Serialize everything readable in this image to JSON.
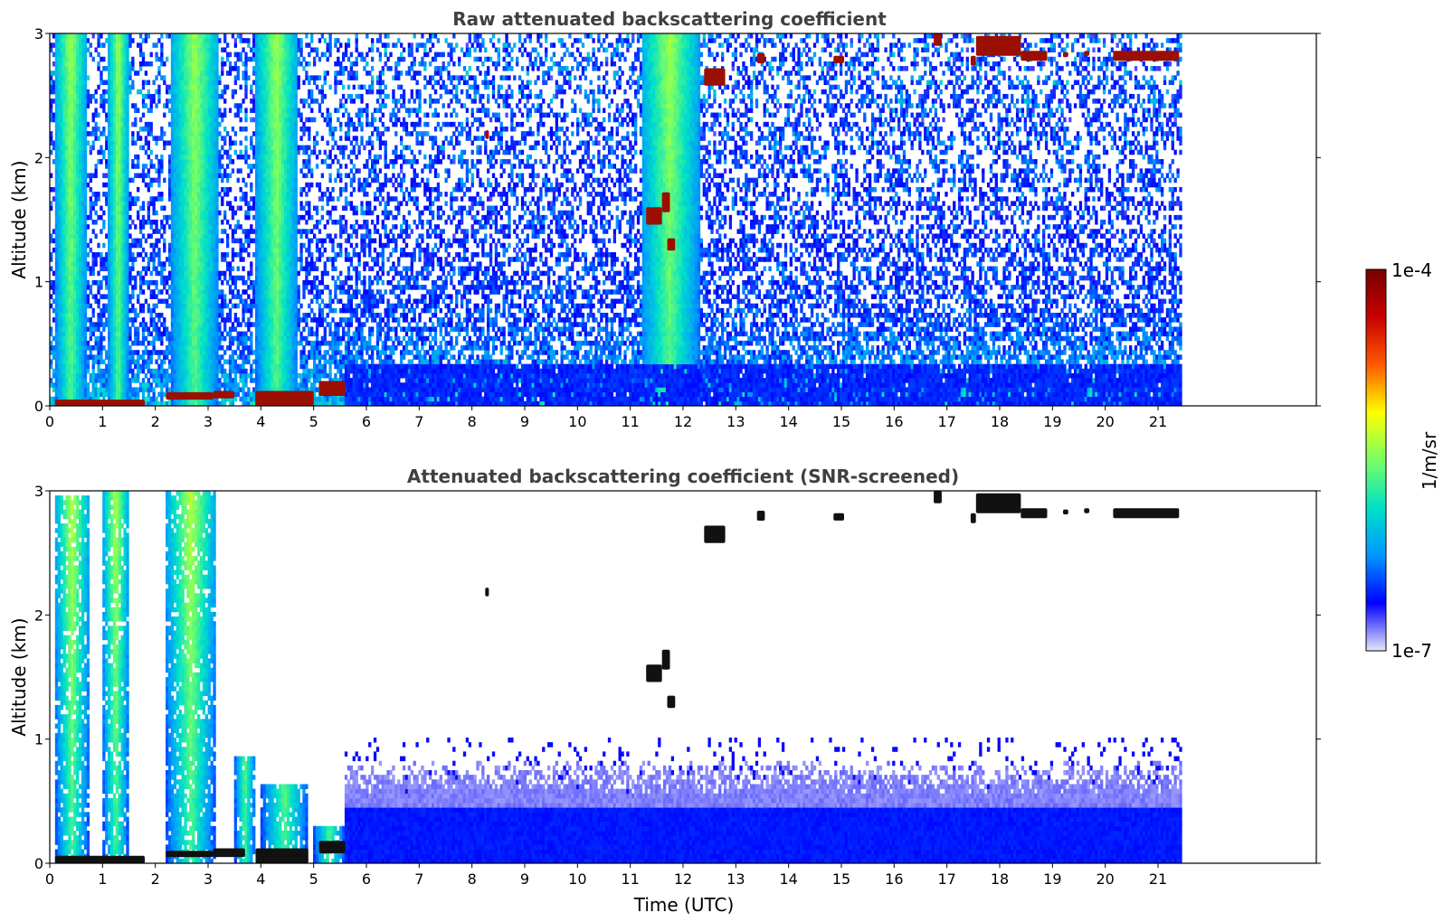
{
  "chart_data": [
    {
      "type": "heatmap",
      "id": "raw",
      "title": "Raw attenuated backscattering coefficient",
      "xlabel": "",
      "ylabel": "Altitude (km)",
      "xlim": [
        0,
        24
      ],
      "ylim": [
        0,
        3
      ],
      "x_ticks": [
        "0",
        "1",
        "2",
        "3",
        "4",
        "5",
        "6",
        "7",
        "8",
        "9",
        "10",
        "11",
        "12",
        "13",
        "14",
        "15",
        "16",
        "17",
        "18",
        "19",
        "20",
        "21"
      ],
      "y_ticks": [
        "0",
        "1",
        "2",
        "3"
      ],
      "data_end_hour": 21.45,
      "aerosol_plumes": [
        {
          "x0": 0.1,
          "x1": 0.7,
          "top": 3.0
        },
        {
          "x0": 1.1,
          "x1": 1.5,
          "top": 3.0
        },
        {
          "x0": 2.3,
          "x1": 3.2,
          "top": 3.0
        },
        {
          "x0": 3.9,
          "x1": 4.7,
          "top": 3.0
        },
        {
          "x0": 11.2,
          "x1": 12.3,
          "top": 3.0
        }
      ],
      "clouds": [
        {
          "x0": 0.1,
          "x1": 1.8,
          "y0": 0.0,
          "y1": 0.05
        },
        {
          "x0": 2.2,
          "x1": 3.1,
          "y0": 0.05,
          "y1": 0.11
        },
        {
          "x0": 3.1,
          "x1": 3.5,
          "y0": 0.06,
          "y1": 0.12
        },
        {
          "x0": 3.9,
          "x1": 5.0,
          "y0": 0.0,
          "y1": 0.12
        },
        {
          "x0": 5.1,
          "x1": 5.6,
          "y0": 0.08,
          "y1": 0.2
        },
        {
          "x0": 8.25,
          "x1": 8.32,
          "y0": 2.15,
          "y1": 2.22
        },
        {
          "x0": 11.3,
          "x1": 11.6,
          "y0": 1.46,
          "y1": 1.6
        },
        {
          "x0": 11.6,
          "x1": 11.75,
          "y0": 1.56,
          "y1": 1.72
        },
        {
          "x0": 11.7,
          "x1": 11.85,
          "y0": 1.25,
          "y1": 1.35
        },
        {
          "x0": 12.4,
          "x1": 12.8,
          "y0": 2.58,
          "y1": 2.72
        },
        {
          "x0": 13.4,
          "x1": 13.55,
          "y0": 2.76,
          "y1": 2.84
        },
        {
          "x0": 14.85,
          "x1": 15.05,
          "y0": 2.76,
          "y1": 2.82
        },
        {
          "x0": 16.75,
          "x1": 16.9,
          "y0": 2.9,
          "y1": 3.0
        },
        {
          "x0": 17.45,
          "x1": 17.55,
          "y0": 2.74,
          "y1": 2.82
        },
        {
          "x0": 17.55,
          "x1": 18.4,
          "y0": 2.82,
          "y1": 2.98
        },
        {
          "x0": 18.4,
          "x1": 18.9,
          "y0": 2.78,
          "y1": 2.86
        },
        {
          "x0": 19.2,
          "x1": 19.3,
          "y0": 2.81,
          "y1": 2.85
        },
        {
          "x0": 19.6,
          "x1": 19.7,
          "y0": 2.82,
          "y1": 2.86
        },
        {
          "x0": 20.15,
          "x1": 21.4,
          "y0": 2.78,
          "y1": 2.86
        }
      ]
    },
    {
      "type": "heatmap",
      "id": "snr",
      "title": "Attenuated backscattering coefficient (SNR-screened)",
      "xlabel": "Time (UTC)",
      "ylabel": "Altitude (km)",
      "xlim": [
        0,
        24
      ],
      "ylim": [
        0,
        3
      ],
      "x_ticks": [
        "0",
        "1",
        "2",
        "3",
        "4",
        "5",
        "6",
        "7",
        "8",
        "9",
        "10",
        "11",
        "12",
        "13",
        "14",
        "15",
        "16",
        "17",
        "18",
        "19",
        "20",
        "21"
      ],
      "y_ticks": [
        "0",
        "1",
        "2",
        "3"
      ],
      "data_end_hour": 21.45,
      "aerosol_plumes": [
        {
          "x0": 0.1,
          "x1": 0.75,
          "top": 2.95
        },
        {
          "x0": 1.0,
          "x1": 1.5,
          "top": 3.0
        },
        {
          "x0": 2.2,
          "x1": 3.15,
          "top": 3.0
        },
        {
          "x0": 3.5,
          "x1": 3.9,
          "top": 0.85
        },
        {
          "x0": 4.0,
          "x1": 4.9,
          "top": 0.65
        },
        {
          "x0": 5.0,
          "x1": 5.6,
          "top": 0.3
        }
      ],
      "boundary_layer": {
        "x0": 5.6,
        "x1": 21.45,
        "top": 0.7
      },
      "clouds": [
        {
          "x0": 0.1,
          "x1": 1.8,
          "y0": 0.0,
          "y1": 0.06
        },
        {
          "x0": 2.2,
          "x1": 3.1,
          "y0": 0.05,
          "y1": 0.1
        },
        {
          "x0": 3.1,
          "x1": 3.7,
          "y0": 0.05,
          "y1": 0.12
        },
        {
          "x0": 3.9,
          "x1": 4.9,
          "y0": 0.0,
          "y1": 0.12
        },
        {
          "x0": 5.1,
          "x1": 5.6,
          "y0": 0.08,
          "y1": 0.18
        },
        {
          "x0": 8.25,
          "x1": 8.32,
          "y0": 2.15,
          "y1": 2.22
        },
        {
          "x0": 11.3,
          "x1": 11.6,
          "y0": 1.46,
          "y1": 1.6
        },
        {
          "x0": 11.6,
          "x1": 11.75,
          "y0": 1.56,
          "y1": 1.72
        },
        {
          "x0": 11.7,
          "x1": 11.85,
          "y0": 1.25,
          "y1": 1.35
        },
        {
          "x0": 12.4,
          "x1": 12.8,
          "y0": 2.58,
          "y1": 2.72
        },
        {
          "x0": 13.4,
          "x1": 13.55,
          "y0": 2.76,
          "y1": 2.84
        },
        {
          "x0": 14.85,
          "x1": 15.05,
          "y0": 2.76,
          "y1": 2.82
        },
        {
          "x0": 16.75,
          "x1": 16.9,
          "y0": 2.9,
          "y1": 3.0
        },
        {
          "x0": 17.45,
          "x1": 17.55,
          "y0": 2.74,
          "y1": 2.82
        },
        {
          "x0": 17.55,
          "x1": 18.4,
          "y0": 2.82,
          "y1": 2.98
        },
        {
          "x0": 18.4,
          "x1": 18.9,
          "y0": 2.78,
          "y1": 2.86
        },
        {
          "x0": 19.2,
          "x1": 19.3,
          "y0": 2.81,
          "y1": 2.85
        },
        {
          "x0": 19.6,
          "x1": 19.7,
          "y0": 2.82,
          "y1": 2.86
        },
        {
          "x0": 20.15,
          "x1": 21.4,
          "y0": 2.78,
          "y1": 2.86
        }
      ]
    }
  ],
  "colorbar": {
    "label": "1/m/sr",
    "max_label": "1e-4",
    "min_label": "1e-7",
    "scale": "log",
    "range": [
      1e-07,
      0.0001
    ],
    "colormap": [
      "#e6e6fa",
      "#0000ff",
      "#0096ff",
      "#00e1c8",
      "#78ff64",
      "#ffff00",
      "#ff5a00",
      "#c80000",
      "#780000"
    ]
  }
}
